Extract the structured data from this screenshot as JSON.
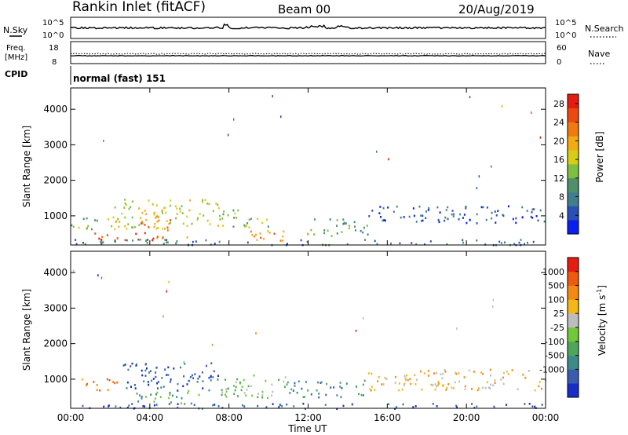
{
  "header": {
    "station": "Rankin Inlet (fitACF)",
    "beam": "Beam 00",
    "date": "20/Aug/2019"
  },
  "strips": {
    "nsky": {
      "label": "N.Sky",
      "ticks": [
        "10^5",
        "10^0"
      ]
    },
    "nsearch": {
      "label": "N.Search",
      "ticks": [
        "10^5",
        "10^0"
      ]
    },
    "freq": {
      "label_line1": "Freq.",
      "label_line2": "[MHz]",
      "ticks": [
        "18",
        "8"
      ]
    },
    "nave": {
      "label": "Nave",
      "ticks": [
        "60",
        "0"
      ]
    },
    "cpid": {
      "label": "CPID",
      "value": "normal (fast) 151"
    }
  },
  "chart_data": [
    {
      "type": "heatmap",
      "quantity": "power",
      "ylabel": "Slant Range [km]",
      "xlabel": "Time UT",
      "x_ticks": [
        "00:00",
        "04:00",
        "08:00",
        "12:00",
        "16:00",
        "20:00",
        "00:00"
      ],
      "xlim_hours": [
        0,
        24
      ],
      "y_ticks": [
        1000,
        2000,
        3000,
        4000
      ],
      "ylim": [
        180,
        4600
      ],
      "colorbar": {
        "label": "Power [dB]",
        "ticks": [
          4,
          8,
          12,
          16,
          20,
          24,
          28
        ],
        "range": [
          0,
          30
        ],
        "colors": [
          "#0a1ef0",
          "#2a4fb8",
          "#3f7f8c",
          "#4f8f6a",
          "#7fbf3f",
          "#d7cc16",
          "#f3ab14",
          "#f07a10",
          "#ee4a10",
          "#e61c10"
        ]
      },
      "regions": [
        {
          "t": [
            0.0,
            2.0
          ],
          "r": [
            650,
            1000
          ],
          "level": 4
        },
        {
          "t": [
            2.0,
            7.5
          ],
          "r": [
            650,
            1500
          ],
          "level": 5
        },
        {
          "t": [
            3.0,
            5.0
          ],
          "r": [
            600,
            1000
          ],
          "level": 7
        },
        {
          "t": [
            1.2,
            4.2
          ],
          "r": [
            250,
            550
          ],
          "level": 8
        },
        {
          "t": [
            4.2,
            6.0
          ],
          "r": [
            300,
            450
          ],
          "level": 7
        },
        {
          "t": [
            7.5,
            10.0
          ],
          "r": [
            700,
            1200
          ],
          "level": 4
        },
        {
          "t": [
            9.0,
            12.0
          ],
          "r": [
            300,
            600
          ],
          "level": 7
        },
        {
          "t": [
            12.0,
            15.0
          ],
          "r": [
            450,
            950
          ],
          "level": 3
        },
        {
          "t": [
            15.0,
            24.0
          ],
          "r": [
            800,
            1300
          ],
          "level": 1
        },
        {
          "t": [
            0.0,
            24.0
          ],
          "r": [
            200,
            360
          ],
          "level": 2
        }
      ]
    },
    {
      "type": "heatmap",
      "quantity": "velocity",
      "ylabel": "Slant Range [km]",
      "xlabel": "Time UT",
      "x_ticks": [
        "00:00",
        "04:00",
        "08:00",
        "12:00",
        "16:00",
        "20:00",
        "00:00"
      ],
      "xlim_hours": [
        0,
        24
      ],
      "y_ticks": [
        1000,
        2000,
        3000,
        4000
      ],
      "ylim": [
        180,
        4600
      ],
      "colorbar": {
        "label_main": "Velocity [m s",
        "label_sup": "-1",
        "label_end": "]",
        "ticks": [
          "1000",
          "500",
          "100",
          "25",
          "-25",
          "-100",
          "-500",
          "-1000"
        ],
        "colors": [
          "#1a2cc8",
          "#3a5cb0",
          "#3d8a8a",
          "#4fa65a",
          "#70c83a",
          "#bdbdbd",
          "#f3b816",
          "#f08a12",
          "#ee5a10",
          "#e61c10"
        ]
      },
      "regions": [
        {
          "t": [
            0.5,
            2.5
          ],
          "r": [
            700,
            1050
          ],
          "level": 7
        },
        {
          "t": [
            2.5,
            7.5
          ],
          "r": [
            700,
            1500
          ],
          "level": 1
        },
        {
          "t": [
            3.0,
            6.5
          ],
          "r": [
            300,
            700
          ],
          "level": 3
        },
        {
          "t": [
            7.5,
            11.0
          ],
          "r": [
            500,
            1200
          ],
          "level": 4
        },
        {
          "t": [
            11.0,
            15.0
          ],
          "r": [
            500,
            1000
          ],
          "level": 2
        },
        {
          "t": [
            15.0,
            24.0
          ],
          "r": [
            700,
            1300
          ],
          "level": 6
        },
        {
          "t": [
            0.0,
            24.0
          ],
          "r": [
            190,
            340
          ],
          "level": 1
        }
      ]
    }
  ]
}
